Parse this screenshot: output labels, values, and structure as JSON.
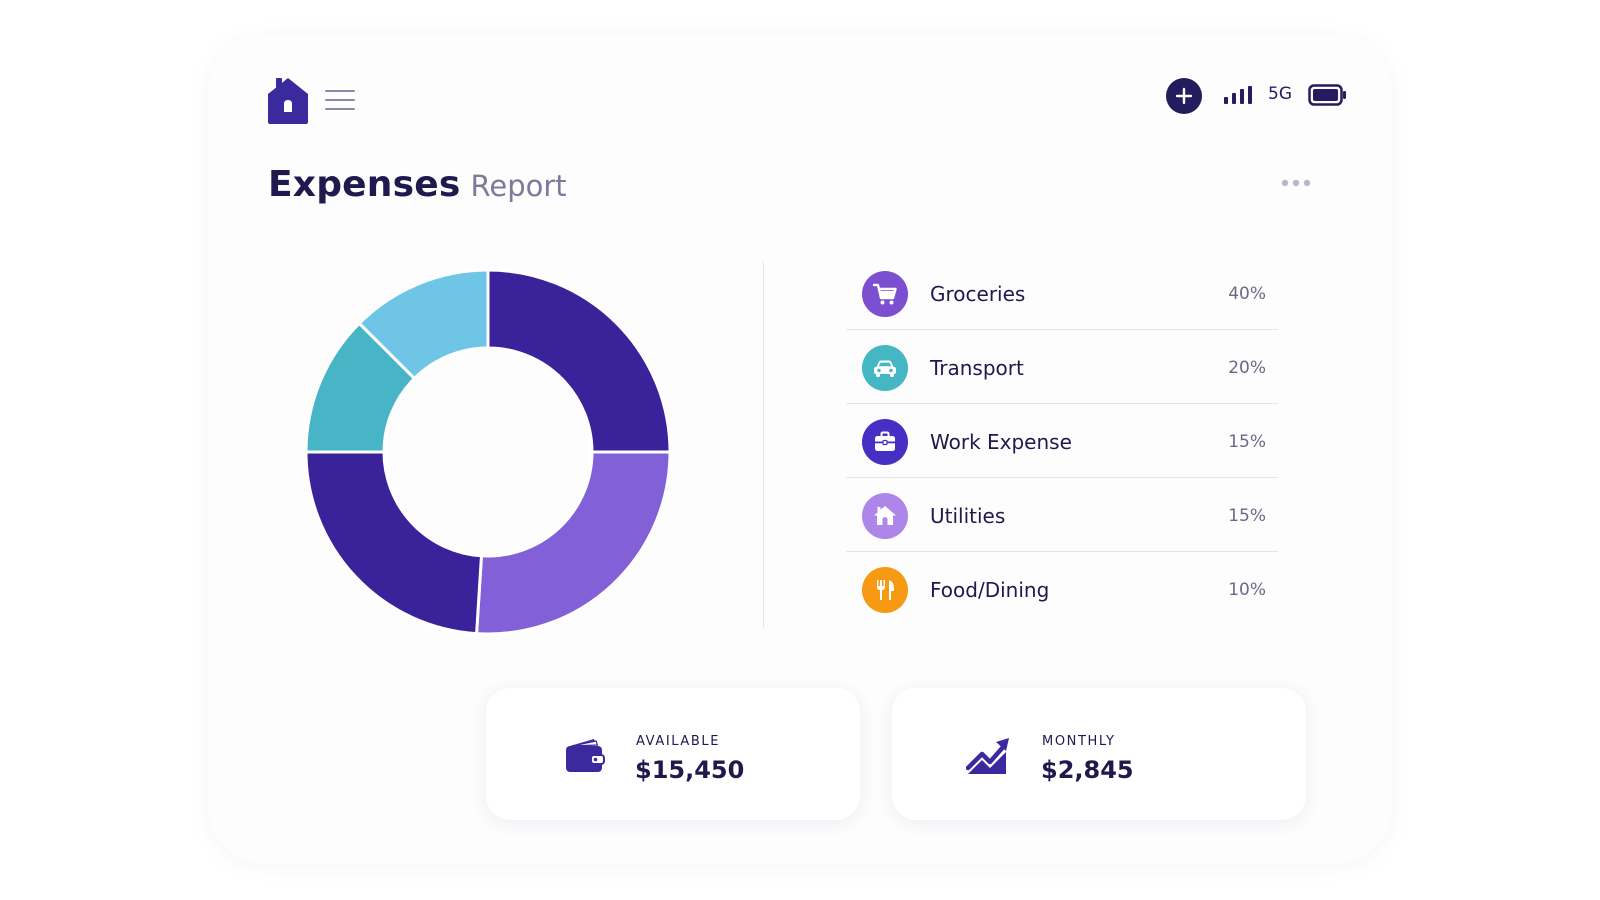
{
  "header": {
    "network": "5G",
    "logo_icon": "house-icon",
    "menu_icon": "hamburger-menu-icon",
    "add_icon": "plus-icon",
    "signal_icon": "signal-bars-icon",
    "battery_icon": "battery-full-icon"
  },
  "page": {
    "title": "Expenses",
    "subtitle": "Report",
    "more_icon": "more-dots-icon"
  },
  "colors": {
    "primary": "#38239a",
    "groceries": "#7b4fd0",
    "transport": "#45b7c4",
    "work_expense": "#4630c4",
    "utilities": "#ae86ea",
    "food_dining": "#f59a12",
    "chart_dark": "#39229a",
    "chart_violet": "#8261d8",
    "chart_teal": "#47b5c6",
    "chart_sky": "#6ec5e6"
  },
  "chart_data": {
    "type": "pie",
    "donut": true,
    "slices": [
      {
        "value": 25,
        "color": "#39229a"
      },
      {
        "value": 26,
        "color": "#8261d8"
      },
      {
        "value": 24,
        "color": "#39229a"
      },
      {
        "value": 12.5,
        "color": "#47b5c6"
      },
      {
        "value": 12.5,
        "color": "#6ec5e6"
      }
    ]
  },
  "legend": [
    {
      "label": "Groceries",
      "percent": "40%",
      "icon": "shopping-cart-icon",
      "color": "#7b4fd0"
    },
    {
      "label": "Transport",
      "percent": "20%",
      "icon": "car-icon",
      "color": "#45b7c4"
    },
    {
      "label": "Work Expense",
      "percent": "15%",
      "icon": "briefcase-icon",
      "color": "#4630c4"
    },
    {
      "label": "Utilities",
      "percent": "15%",
      "icon": "house-icon",
      "color": "#ae86ea"
    },
    {
      "label": "Food/Dining",
      "percent": "10%",
      "icon": "fork-knife-icon",
      "color": "#f59a12"
    }
  ],
  "stats": [
    {
      "label": "AVAILABLE",
      "value": "$15,450",
      "icon": "wallet-icon"
    },
    {
      "label": "MONTHLY",
      "value": "$2,845",
      "icon": "trend-up-icon"
    }
  ]
}
